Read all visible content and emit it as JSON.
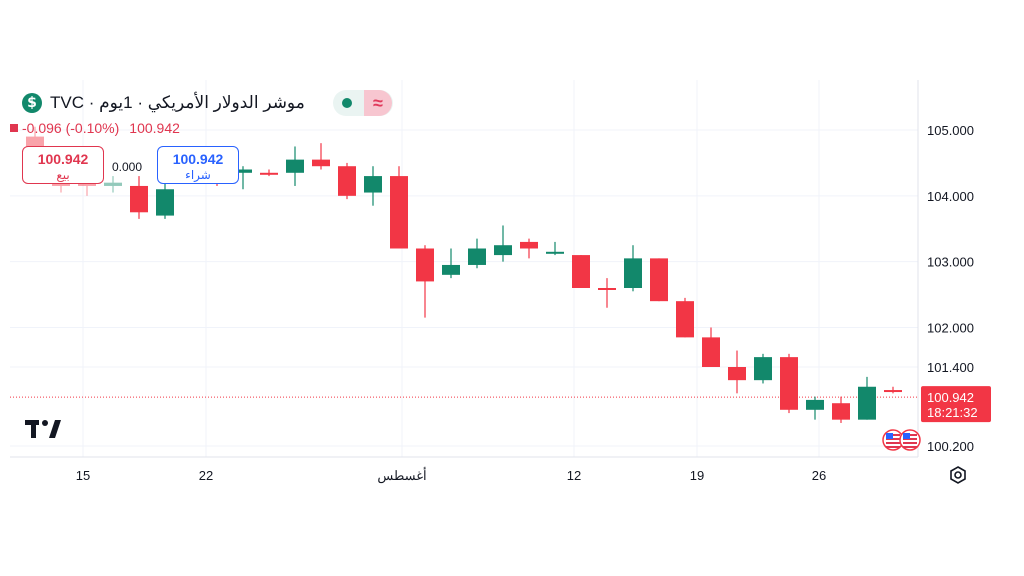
{
  "header": {
    "title": "موشر الدولار الأمريكي · 1يوم · TVC",
    "currency_symbol": "$",
    "status_icon": "≈"
  },
  "quote": {
    "change": "-0.096 (-0.10%)",
    "last": "100.942"
  },
  "sell": {
    "price": "100.942",
    "label": "بيع"
  },
  "buy": {
    "price": "100.942",
    "label": "شراء"
  },
  "spread": "0.000",
  "price_tag": {
    "price": "100.942",
    "countdown": "18:21:32"
  },
  "colors": {
    "up": "#12886b",
    "down": "#f23645",
    "sell": "#e0364f",
    "buy": "#2962ff"
  },
  "chart_data": {
    "type": "candlestick",
    "y_axis": {
      "ticks": [
        "105.000",
        "104.000",
        "103.000",
        "102.000",
        "101.400",
        "100.200"
      ],
      "tick_values": [
        105.0,
        104.0,
        103.0,
        102.0,
        101.4,
        100.2
      ]
    },
    "x_axis": {
      "ticks": [
        "15",
        "22",
        "أغسطس",
        "12",
        "19",
        "26"
      ]
    },
    "current_price": 100.942,
    "candles": [
      {
        "o": 104.9,
        "h": 105.05,
        "l": 104.65,
        "c": 104.75
      },
      {
        "o": 104.2,
        "h": 104.35,
        "l": 104.05,
        "c": 104.15
      },
      {
        "o": 104.2,
        "h": 104.35,
        "l": 104.0,
        "c": 104.15
      },
      {
        "o": 104.15,
        "h": 104.3,
        "l": 104.05,
        "c": 104.2
      },
      {
        "o": 104.15,
        "h": 104.3,
        "l": 103.65,
        "c": 103.75
      },
      {
        "o": 103.7,
        "h": 104.2,
        "l": 103.65,
        "c": 104.1
      },
      {
        "o": 104.4,
        "h": 104.5,
        "l": 104.25,
        "c": 104.35
      },
      {
        "o": 104.45,
        "h": 104.55,
        "l": 104.15,
        "c": 104.3
      },
      {
        "o": 104.35,
        "h": 104.45,
        "l": 104.1,
        "c": 104.4
      },
      {
        "o": 104.35,
        "h": 104.4,
        "l": 104.3,
        "c": 104.32
      },
      {
        "o": 104.35,
        "h": 104.75,
        "l": 104.15,
        "c": 104.55
      },
      {
        "o": 104.55,
        "h": 104.8,
        "l": 104.4,
        "c": 104.45
      },
      {
        "o": 104.45,
        "h": 104.5,
        "l": 103.95,
        "c": 104.0
      },
      {
        "o": 104.05,
        "h": 104.45,
        "l": 103.85,
        "c": 104.3
      },
      {
        "o": 104.3,
        "h": 104.45,
        "l": 103.2,
        "c": 103.2
      },
      {
        "o": 103.2,
        "h": 103.25,
        "l": 102.15,
        "c": 102.7
      },
      {
        "o": 102.8,
        "h": 103.2,
        "l": 102.75,
        "c": 102.95
      },
      {
        "o": 102.95,
        "h": 103.35,
        "l": 102.9,
        "c": 103.2
      },
      {
        "o": 103.1,
        "h": 103.55,
        "l": 103.0,
        "c": 103.25
      },
      {
        "o": 103.3,
        "h": 103.35,
        "l": 103.05,
        "c": 103.2
      },
      {
        "o": 103.15,
        "h": 103.3,
        "l": 103.1,
        "c": 103.15
      },
      {
        "o": 103.1,
        "h": 103.1,
        "l": 102.6,
        "c": 102.6
      },
      {
        "o": 102.6,
        "h": 102.75,
        "l": 102.3,
        "c": 102.57
      },
      {
        "o": 102.6,
        "h": 103.25,
        "l": 102.55,
        "c": 103.05
      },
      {
        "o": 103.05,
        "h": 103.05,
        "l": 102.4,
        "c": 102.4
      },
      {
        "o": 102.4,
        "h": 102.45,
        "l": 101.85,
        "c": 101.85
      },
      {
        "o": 101.85,
        "h": 102.0,
        "l": 101.4,
        "c": 101.4
      },
      {
        "o": 101.4,
        "h": 101.65,
        "l": 101.0,
        "c": 101.2
      },
      {
        "o": 101.2,
        "h": 101.6,
        "l": 101.15,
        "c": 101.55
      },
      {
        "o": 101.55,
        "h": 101.6,
        "l": 100.7,
        "c": 100.75
      },
      {
        "o": 100.75,
        "h": 100.95,
        "l": 100.6,
        "c": 100.9
      },
      {
        "o": 100.85,
        "h": 100.95,
        "l": 100.55,
        "c": 100.6
      },
      {
        "o": 100.6,
        "h": 101.25,
        "l": 100.6,
        "c": 101.1
      },
      {
        "o": 101.05,
        "h": 101.1,
        "l": 101.0,
        "c": 101.02
      }
    ]
  }
}
